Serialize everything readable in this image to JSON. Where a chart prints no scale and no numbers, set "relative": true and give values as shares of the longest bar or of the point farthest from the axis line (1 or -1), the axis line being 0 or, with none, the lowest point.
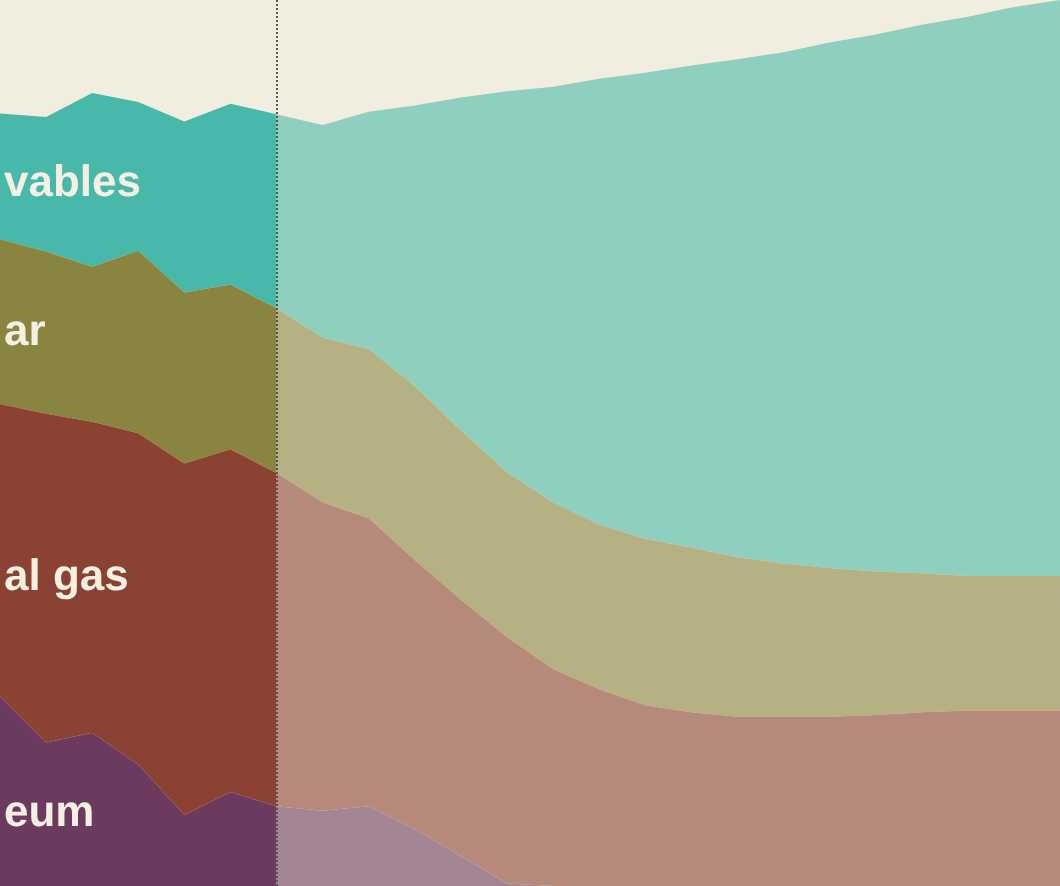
{
  "chart_data": {
    "type": "area",
    "stacked": true,
    "relative": true,
    "marker": "none",
    "categories": [
      null,
      null,
      null,
      null,
      null,
      null,
      null,
      null,
      null,
      null,
      null,
      null,
      null,
      null,
      null,
      null,
      null,
      null,
      null,
      null,
      null,
      null,
      null,
      null
    ],
    "series": [
      {
        "name": "eum",
        "color": "#6b3a5e",
        "values": [
          0.214,
          0.162,
          0.173,
          0.137,
          0.08,
          0.106,
          0.09,
          0.085,
          0.09,
          0.064,
          0.034,
          0.003,
          0,
          0,
          0,
          0,
          0,
          0,
          0,
          0,
          0,
          0,
          0,
          0
        ]
      },
      {
        "name": "al gas",
        "color": "#8b4232",
        "values": [
          0.33,
          0.371,
          0.351,
          0.374,
          0.397,
          0.387,
          0.376,
          0.348,
          0.325,
          0.304,
          0.289,
          0.278,
          0.245,
          0.222,
          0.204,
          0.196,
          0.191,
          0.191,
          0.191,
          0.193,
          0.196,
          0.198,
          0.198,
          0.198
        ]
      },
      {
        "name": "ar",
        "color": "#898540",
        "values": [
          0.186,
          0.183,
          0.175,
          0.206,
          0.193,
          0.186,
          0.186,
          0.186,
          0.191,
          0.196,
          0.191,
          0.186,
          0.188,
          0.186,
          0.188,
          0.186,
          0.18,
          0.173,
          0.168,
          0.162,
          0.157,
          0.152,
          0.152,
          0.152
        ]
      },
      {
        "name": "vables",
        "color": "#47b8a9",
        "values": [
          0.142,
          0.152,
          0.196,
          0.168,
          0.193,
          0.204,
          0.219,
          0.24,
          0.268,
          0.317,
          0.376,
          0.43,
          0.469,
          0.503,
          0.526,
          0.544,
          0.562,
          0.577,
          0.593,
          0.606,
          0.619,
          0.631,
          0.642,
          0.65
        ]
      }
    ]
  }
}
